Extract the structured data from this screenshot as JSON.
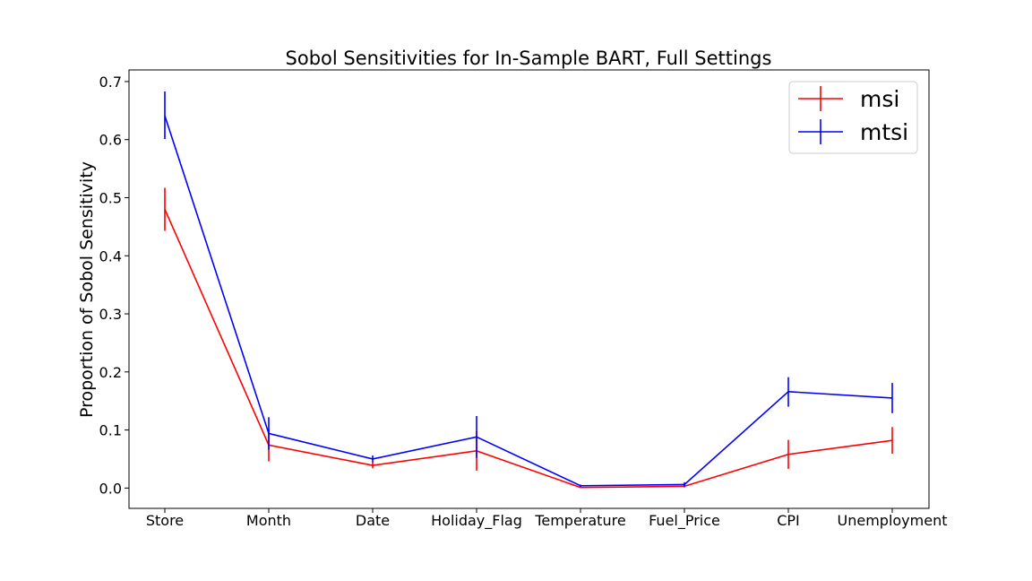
{
  "chart_data": {
    "type": "line",
    "title": "Sobol Sensitivities for In-Sample BART, Full Settings",
    "xlabel": "",
    "ylabel": "Proportion of Sobol Sensitivity",
    "categories": [
      "Store",
      "Month",
      "Date",
      "Holiday_Flag",
      "Temperature",
      "Fuel_Price",
      "CPI",
      "Unemployment"
    ],
    "ylim": [
      -0.035,
      0.72
    ],
    "yticks": [
      "0.0",
      "0.1",
      "0.2",
      "0.3",
      "0.4",
      "0.5",
      "0.6",
      "0.7"
    ],
    "grid": false,
    "legend_position": "top-right",
    "series": [
      {
        "name": "msi",
        "color": "#ff0000",
        "values": [
          0.48,
          0.074,
          0.039,
          0.064,
          0.001,
          0.003,
          0.058,
          0.082
        ],
        "err_low": [
          0.443,
          0.046,
          0.034,
          0.03,
          0.0,
          0.001,
          0.033,
          0.059
        ],
        "err_high": [
          0.517,
          0.102,
          0.044,
          0.098,
          0.002,
          0.005,
          0.083,
          0.105
        ]
      },
      {
        "name": "mtsi",
        "color": "#0000ff",
        "values": [
          0.641,
          0.094,
          0.05,
          0.088,
          0.004,
          0.006,
          0.166,
          0.155
        ],
        "err_low": [
          0.601,
          0.066,
          0.044,
          0.052,
          0.002,
          0.002,
          0.14,
          0.129
        ],
        "err_high": [
          0.683,
          0.122,
          0.056,
          0.124,
          0.006,
          0.01,
          0.191,
          0.181
        ]
      }
    ]
  }
}
